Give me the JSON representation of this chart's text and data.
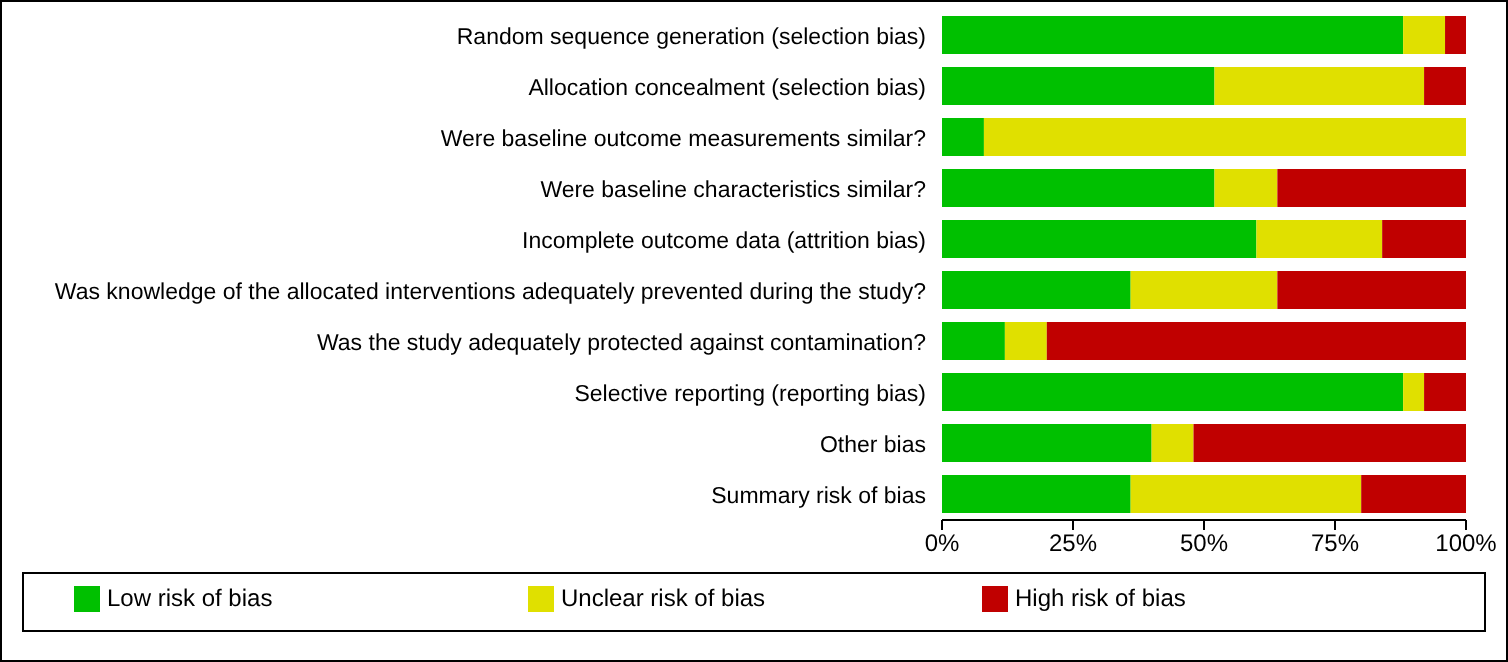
{
  "chart_data": {
    "type": "bar",
    "orientation": "horizontal",
    "stacked": true,
    "legend": "bottom",
    "categories": [
      "Random sequence generation (selection bias)",
      "Allocation concealment (selection bias)",
      "Were baseline outcome measurements similar?",
      "Were baseline characteristics similar?",
      "Incomplete outcome data (attrition bias)",
      "Was knowledge of the allocated interventions adequately prevented during the study?",
      "Was the study adequately protected against contamination?",
      "Selective reporting (reporting bias)",
      "Other bias",
      "Summary risk of bias"
    ],
    "series": [
      {
        "name": "Low risk of bias",
        "color": "#00c000",
        "values": [
          88,
          52,
          8,
          52,
          60,
          36,
          12,
          88,
          40,
          36
        ]
      },
      {
        "name": "Unclear risk of bias",
        "color": "#e0e000",
        "values": [
          8,
          40,
          92,
          12,
          24,
          28,
          8,
          4,
          8,
          44
        ]
      },
      {
        "name": "High risk of bias",
        "color": "#c00000",
        "values": [
          4,
          8,
          0,
          36,
          16,
          36,
          80,
          8,
          52,
          20
        ]
      }
    ],
    "xlim": [
      0,
      100
    ],
    "xticks": [
      {
        "value": 0,
        "label": "0%"
      },
      {
        "value": 25,
        "label": "25%"
      },
      {
        "value": 50,
        "label": "50%"
      },
      {
        "value": 75,
        "label": "75%"
      },
      {
        "value": 100,
        "label": "100%"
      }
    ]
  }
}
